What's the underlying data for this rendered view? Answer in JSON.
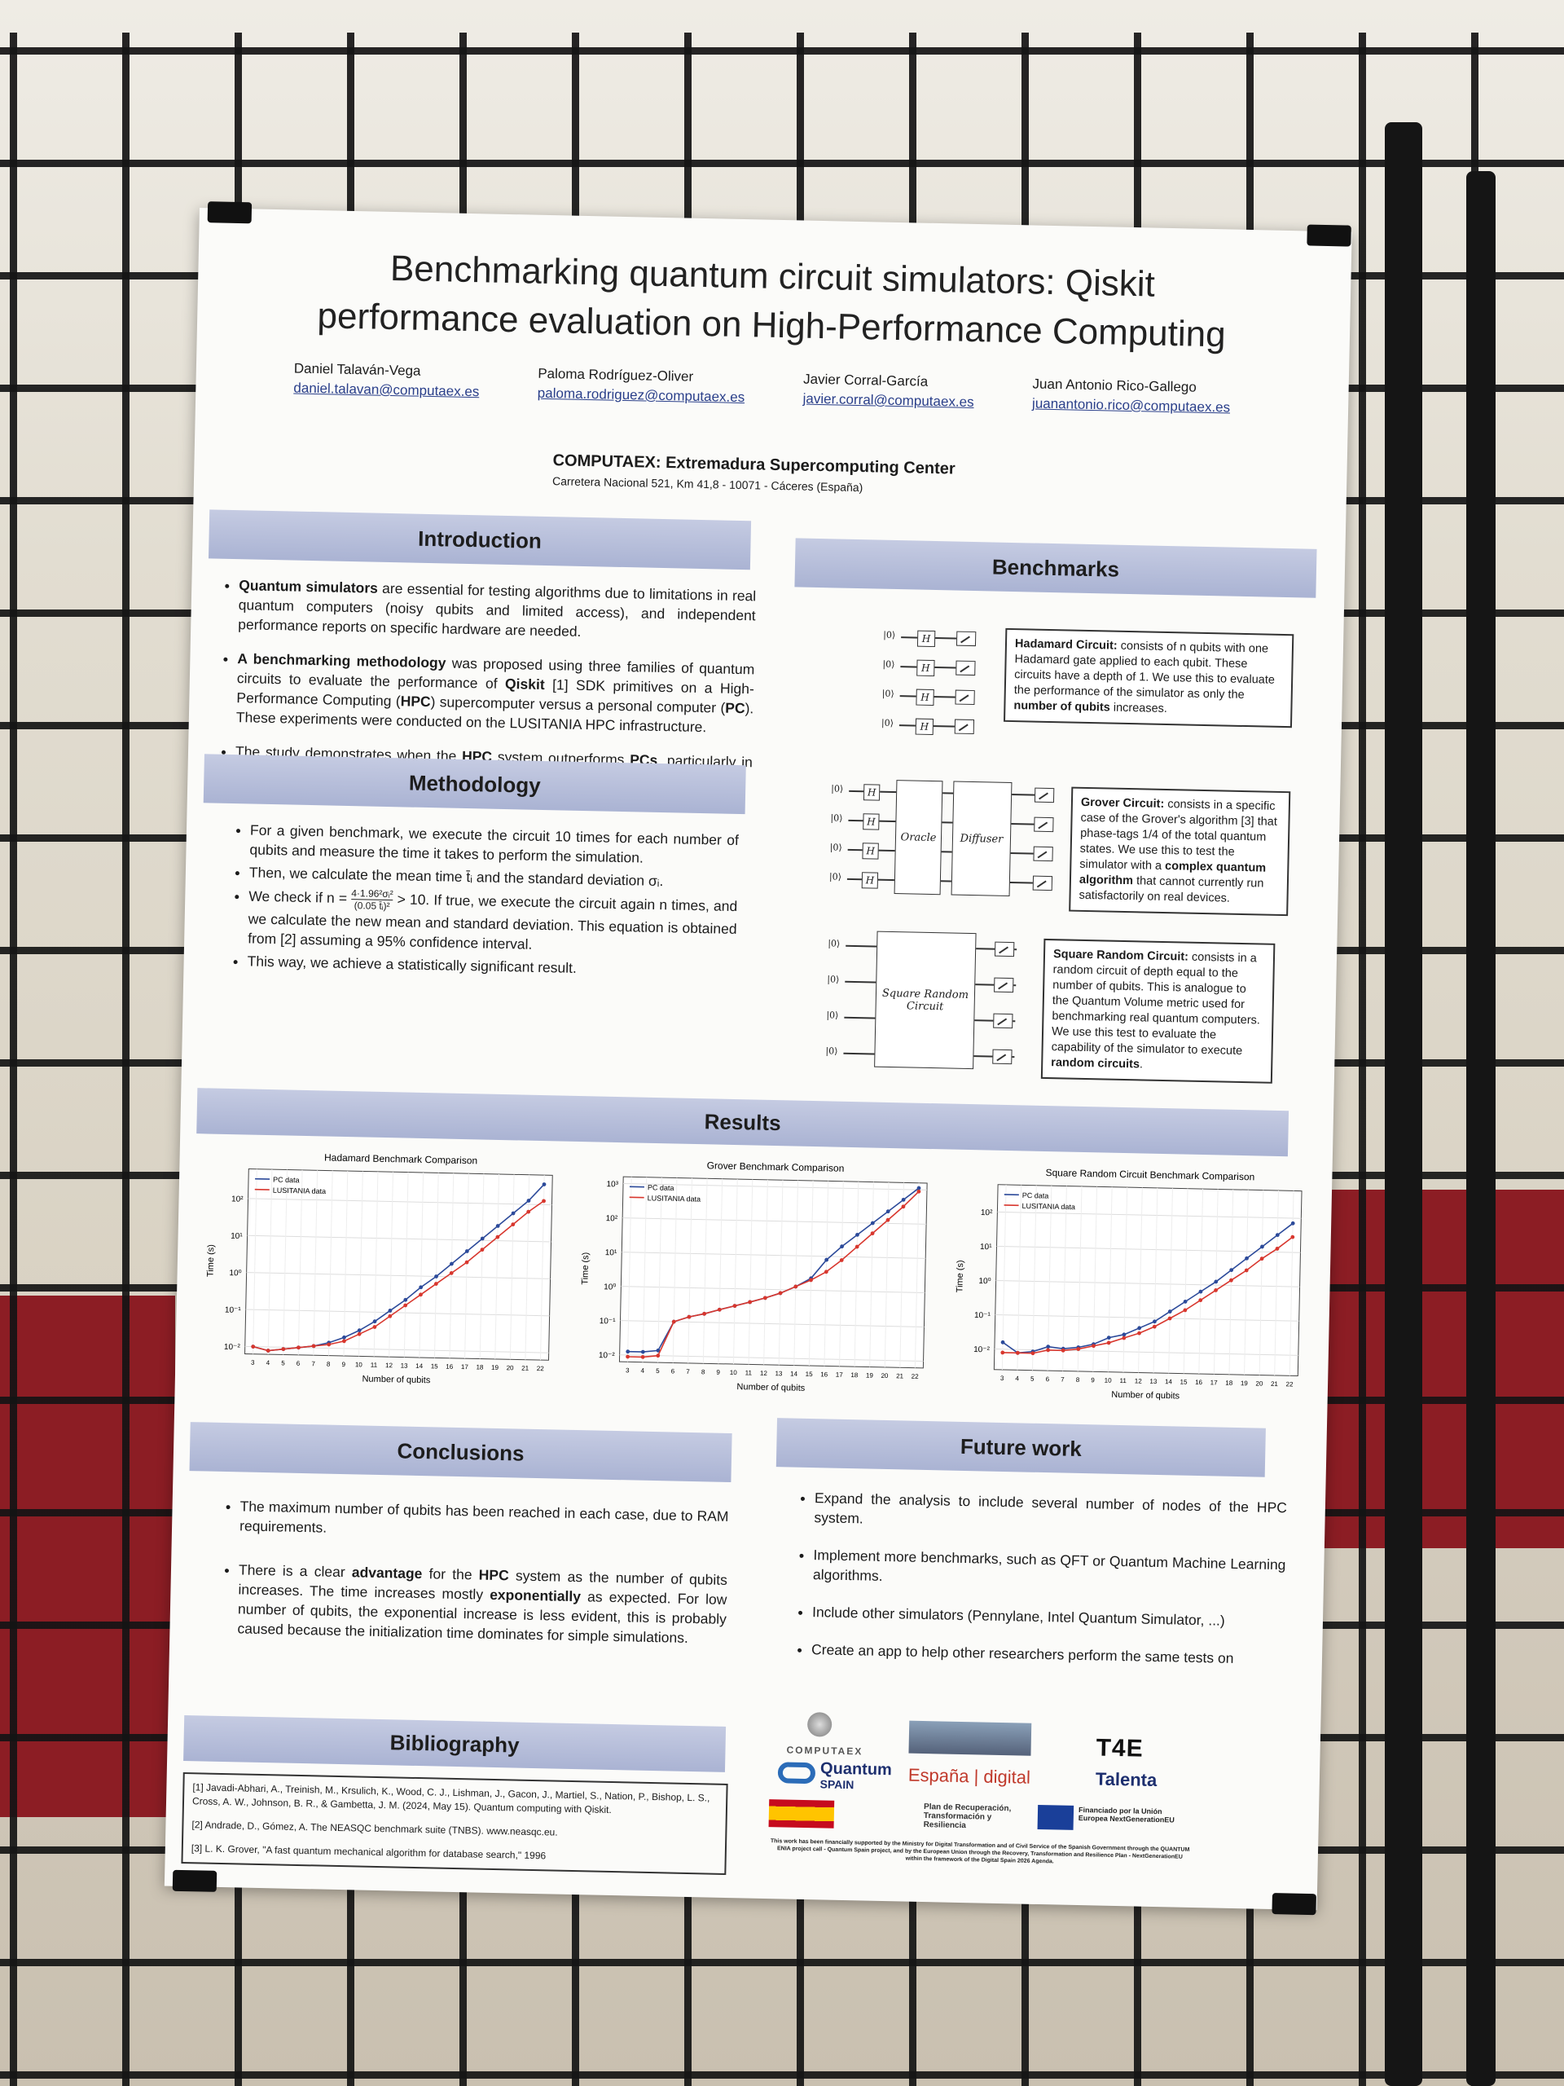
{
  "poster": {
    "title_line1": "Benchmarking quantum circuit simulators: Qiskit",
    "title_line2": "performance evaluation on High-Performance Computing",
    "authors": [
      {
        "name": "Daniel Talaván-Vega",
        "email": "daniel.talavan@computaex.es"
      },
      {
        "name": "Paloma Rodríguez-Oliver",
        "email": "paloma.rodriguez@computaex.es"
      },
      {
        "name": "Javier Corral-García",
        "email": "javier.corral@computaex.es"
      },
      {
        "name": "Juan Antonio Rico-Gallego",
        "email": "juanantonio.rico@computaex.es"
      }
    ],
    "institution": "COMPUTAEX: Extremadura Supercomputing Center",
    "address": "Carretera Nacional 521, Km 41,8 - 10071 - Cáceres (España)"
  },
  "introduction": {
    "heading": "Introduction",
    "b1_bold": "Quantum simulators",
    "b1_rest": " are essential for testing algorithms due to limitations in real quantum computers (noisy qubits and limited access), and independent performance reports on specific hardware are needed.",
    "b2_bold": "A benchmarking methodology",
    "b2_a": " was proposed using three families of quantum circuits to evaluate the performance of ",
    "b2_qiskit": "Qiskit",
    "b2_b": " [1] SDK primitives on a High-Performance Computing (",
    "b2_hpc": "HPC",
    "b2_c": ") supercomputer versus a personal computer (",
    "b2_pc": "PC",
    "b2_d": "). These experiments were conducted on the LUSITANIA HPC infrastructure.",
    "b3_a": "The study demonstrates when the ",
    "b3_hpc": "HPC",
    "b3_b": " system outperforms ",
    "b3_pcs": "PCs",
    "b3_c": ", particularly in simulations involving a high qubit count and complex benchmarks."
  },
  "methodology": {
    "heading": "Methodology",
    "b1": "For a given benchmark, we execute the circuit 10 times for each number of qubits and measure the time it takes to perform the simulation.",
    "b2": "Then, we calculate the mean time t̄ᵢ and the standard deviation σᵢ.",
    "b3_a": "We check if n = ",
    "b3_num": "4·1.96²σᵢ²",
    "b3_den": "(0.05 t̄ᵢ)²",
    "b3_b": " > 10. If true, we execute the circuit again n times, and we calculate the new mean and standard deviation. This equation is obtained from [2] assuming a 95% confidence interval.",
    "b4": "This way, we achieve a statistically significant result."
  },
  "benchmarks": {
    "heading": "Benchmarks",
    "hadamard_bold": "Hadamard Circuit:",
    "hadamard_a": " consists of n qubits with one Hadamard gate applied to each qubit. These circuits have a depth of 1. We use this to evaluate the performance of the simulator as only the ",
    "hadamard_bold2": "number of qubits",
    "hadamard_b": " increases.",
    "grover_bold": "Grover Circuit:",
    "grover_a": " consists in a specific case of the Grover's algorithm [3] that phase-tags 1/4 of the total quantum states. We use this to test the simulator with a ",
    "grover_bold2": "complex quantum algorithm",
    "grover_b": " that cannot currently run satisfactorily on real devices.",
    "square_bold": "Square Random Circuit:",
    "square_a": " consists in a random circuit of depth equal to the number of qubits. This is analogue to the Quantum Volume metric used for benchmarking real quantum computers. We use this test to evaluate the capability of the simulator to execute ",
    "square_bold2": "random circuits",
    "square_b": ".",
    "ket": "|0⟩",
    "gate_h": "H",
    "oracle": "Oracle",
    "diffuser": "Diffuser",
    "square_block_1": "Square Random",
    "square_block_2": "Circuit"
  },
  "results": {
    "heading": "Results"
  },
  "chart_data": [
    {
      "type": "line",
      "title": "Hadamard Benchmark Comparison",
      "xlabel": "Number of qubits",
      "ylabel": "Time (s)",
      "yscale": "log",
      "legend": "top-left",
      "grid": true,
      "x": [
        3,
        4,
        5,
        6,
        7,
        8,
        9,
        10,
        11,
        12,
        13,
        14,
        15,
        16,
        17,
        18,
        19,
        20,
        21,
        22
      ],
      "ylim_exp": [
        -2.2,
        2.8
      ],
      "yticks": [
        "10⁻²",
        "10⁻¹",
        "10⁰",
        "10¹",
        "10²"
      ],
      "series": [
        {
          "name": "PC data",
          "color": "#2c4a9a",
          "log10_values": [
            -2.0,
            -2.1,
            -2.05,
            -2.0,
            -1.95,
            -1.85,
            -1.7,
            -1.5,
            -1.25,
            -0.95,
            -0.65,
            -0.3,
            0.0,
            0.35,
            0.7,
            1.05,
            1.4,
            1.75,
            2.1,
            2.55
          ]
        },
        {
          "name": "LUSITANIA data",
          "color": "#d8372e",
          "log10_values": [
            -2.0,
            -2.1,
            -2.05,
            -2.0,
            -1.95,
            -1.9,
            -1.8,
            -1.6,
            -1.4,
            -1.1,
            -0.8,
            -0.5,
            -0.2,
            0.1,
            0.4,
            0.75,
            1.1,
            1.45,
            1.8,
            2.1
          ]
        }
      ]
    },
    {
      "type": "line",
      "title": "Grover Benchmark Comparison",
      "xlabel": "Number of qubits",
      "ylabel": "Time (s)",
      "yscale": "log",
      "legend": "top-left",
      "grid": true,
      "x": [
        3,
        4,
        5,
        6,
        7,
        8,
        9,
        10,
        11,
        12,
        13,
        14,
        15,
        16,
        17,
        18,
        19,
        20,
        21,
        22
      ],
      "ylim_exp": [
        -2.2,
        3.2
      ],
      "yticks": [
        "10⁻²",
        "10⁻¹",
        "10⁰",
        "10¹",
        "10²",
        "10³"
      ],
      "series": [
        {
          "name": "PC data",
          "color": "#2c4a9a",
          "log10_values": [
            -1.9,
            -1.9,
            -1.85,
            -1.0,
            -0.85,
            -0.75,
            -0.62,
            -0.5,
            -0.38,
            -0.25,
            -0.1,
            0.1,
            0.35,
            0.9,
            1.3,
            1.65,
            2.0,
            2.35,
            2.7,
            3.05
          ]
        },
        {
          "name": "LUSITANIA data",
          "color": "#d8372e",
          "log10_values": [
            -2.05,
            -2.05,
            -2.0,
            -1.0,
            -0.85,
            -0.75,
            -0.62,
            -0.5,
            -0.38,
            -0.25,
            -0.1,
            0.1,
            0.3,
            0.55,
            0.9,
            1.3,
            1.7,
            2.1,
            2.5,
            2.95
          ]
        }
      ]
    },
    {
      "type": "line",
      "title": "Square Random Circuit Benchmark Comparison",
      "xlabel": "Number of qubits",
      "ylabel": "Time (s)",
      "yscale": "log",
      "legend": "top-left",
      "grid": true,
      "x": [
        3,
        4,
        5,
        6,
        7,
        8,
        9,
        10,
        11,
        12,
        13,
        14,
        15,
        16,
        17,
        18,
        19,
        20,
        21,
        22
      ],
      "ylim_exp": [
        -2.6,
        2.8
      ],
      "yticks": [
        "10⁻²",
        "10⁻¹",
        "10⁰",
        "10¹",
        "10²"
      ],
      "series": [
        {
          "name": "PC data",
          "color": "#2c4a9a",
          "log10_values": [
            -1.8,
            -2.1,
            -2.05,
            -1.9,
            -1.95,
            -1.9,
            -1.8,
            -1.6,
            -1.5,
            -1.3,
            -1.1,
            -0.8,
            -0.5,
            -0.2,
            0.1,
            0.45,
            0.8,
            1.15,
            1.5,
            1.85
          ]
        },
        {
          "name": "LUSITANIA data",
          "color": "#d8372e",
          "log10_values": [
            -2.1,
            -2.1,
            -2.1,
            -2.0,
            -2.0,
            -1.95,
            -1.85,
            -1.75,
            -1.6,
            -1.45,
            -1.25,
            -1.0,
            -0.75,
            -0.45,
            -0.15,
            0.15,
            0.45,
            0.8,
            1.1,
            1.45
          ]
        }
      ]
    }
  ],
  "conclusions": {
    "heading": "Conclusions",
    "b1": "The maximum number of qubits has been reached in each case, due to RAM requirements.",
    "b2_a": "There is a clear ",
    "b2_adv": "advantage",
    "b2_b": " for the ",
    "b2_hpc": "HPC",
    "b2_c": " system as the number of qubits increases. The time increases mostly ",
    "b2_exp": "exponentially",
    "b2_d": " as expected. For low number of qubits, the exponential increase is less evident, this is probably caused because the initialization time dominates for simple simulations."
  },
  "future": {
    "heading": "Future work",
    "b1": "Expand the analysis to include several number of nodes of the HPC system.",
    "b2": "Implement more benchmarks, such as QFT or Quantum Machine Learning algorithms.",
    "b3": "Include other simulators (Pennylane, Intel Quantum Simulator, ...)",
    "b4": "Create an app to help other researchers perform the same tests on"
  },
  "bibliography": {
    "heading": "Bibliography",
    "r1": "[1] Javadi-Abhari, A., Treinish, M., Krsulich, K., Wood, C. J., Lishman, J., Gacon, J., Martiel, S., Nation, P., Bishop, L. S., Cross, A. W., Johnson, B. R., & Gambetta, J. M. (2024, May 15). Quantum computing with Qiskit.",
    "r2": "[2] Andrade, D., Gómez, A. The NEASQC benchmark suite (TNBS). www.neasqc.eu.",
    "r3": "[3] L. K. Grover, \"A fast quantum mechanical algorithm for database search,\" 1996"
  },
  "logos": {
    "computaex": "COMPUTAEX",
    "quantum": "Quantum",
    "spain": "SPAIN",
    "espana_digital": "España | digital",
    "talenta": "Talenta",
    "plan": "Plan de Recuperación, Transformación y Resiliencia",
    "eu": "Financiado por la Unión Europea NextGenerationEU",
    "funding_note": "This work has been financially supported by the Ministry for Digital Transformation and of Civil Service of the Spanish Government through the QUANTUM ENIA project call - Quantum Spain project, and by the European Union through the Recovery, Transformation and Resilience Plan - NextGenerationEU within the framework of the Digital Spain 2026 Agenda."
  }
}
